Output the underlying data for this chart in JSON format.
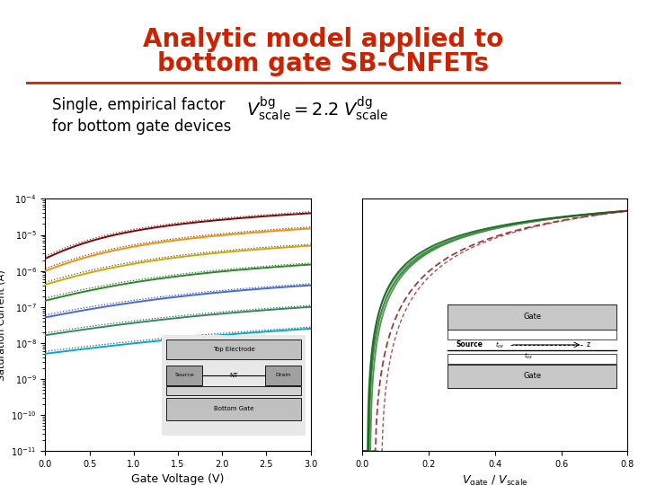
{
  "title_line1": "Analytic model applied to",
  "title_line2": "bottom gate SB-CNFETs",
  "title_color": "#cc2200",
  "title_fontsize": 20,
  "subtitle": "Single, empirical factor\nfor bottom gate devices",
  "subtitle_fontsize": 12,
  "equation": "$V_{\\mathrm{scale}}^{\\mathrm{bg}} = 2.2\\; V_{\\mathrm{scale}}^{\\mathrm{dg}}$",
  "equation_fontsize": 14,
  "bg_color": "#ffffff",
  "divider_color": "#cc2200",
  "left_plot": {
    "xlabel": "Gate Voltage (V)",
    "ylabel": "Saturation Current (A)",
    "xlim": [
      0.0,
      3.0
    ],
    "line_colors": [
      "#8b0000",
      "#ff8c00",
      "#ccaa00",
      "#228b22",
      "#4169e1",
      "#2e8b57",
      "#00aacc"
    ],
    "inset_label_top": "Top Electrode",
    "inset_label_src": "Source",
    "inset_label_nt": "NT",
    "inset_label_drain": "Drain",
    "inset_label_bg": "Bottom Gate"
  },
  "right_plot": {
    "xlabel": "$V_{\\mathrm{gate}}$ / $V_{\\mathrm{scale}}$",
    "xlim": [
      0.0,
      0.8
    ],
    "inset_label_gate": "Gate",
    "inset_label_source": "Source",
    "inset_label_tox": "t_ox",
    "inset_label_z": "z"
  }
}
